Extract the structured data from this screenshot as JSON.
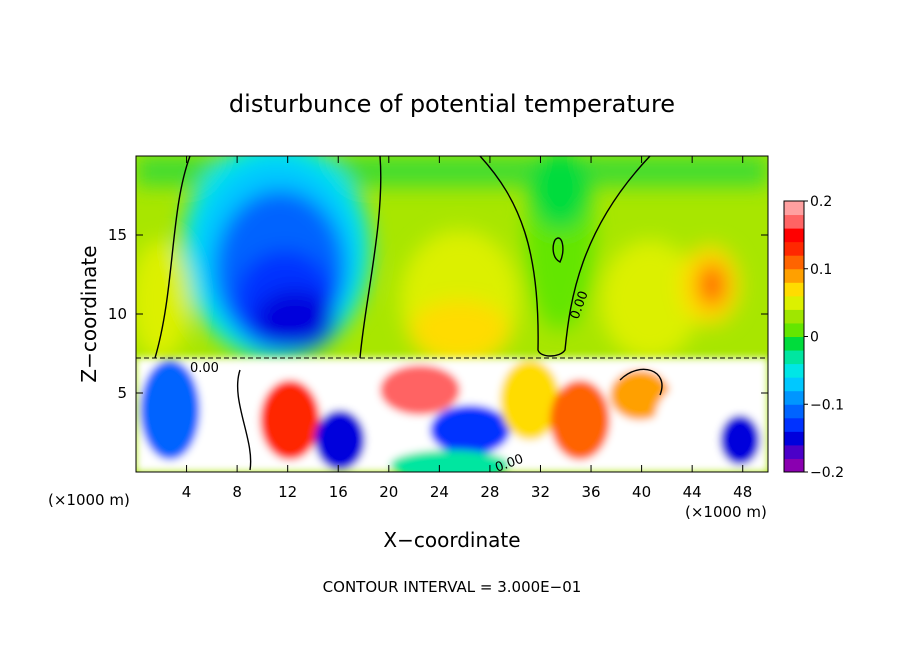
{
  "chart_data": {
    "type": "heatmap",
    "title": "disturbunce of potential temperature",
    "xlabel": "X−coordinate",
    "ylabel": "Z−coordinate",
    "x_unit_label": "(×1000 m)",
    "y_unit_label": "(×1000 m)",
    "xlim": [
      0,
      50
    ],
    "ylim": [
      0,
      20
    ],
    "x_ticks": [
      4,
      8,
      12,
      16,
      20,
      24,
      28,
      32,
      36,
      40,
      44,
      48
    ],
    "x_tick_labels": [
      "4",
      "8",
      "12",
      "16",
      "20",
      "24",
      "28",
      "32",
      "36",
      "40",
      "44",
      "48"
    ],
    "y_ticks": [
      5,
      10,
      15
    ],
    "y_tick_labels": [
      "5",
      "10",
      "15"
    ],
    "colorbar": {
      "range": [
        -0.2,
        0.2
      ],
      "ticks": [
        0.2,
        0.1,
        0,
        -0.1,
        -0.2
      ],
      "tick_labels": [
        "0.2",
        "0.1",
        "0",
        "−0.1",
        "−0.2"
      ],
      "colors": [
        "#8a00b0",
        "#4b00c8",
        "#0000dc",
        "#0032ff",
        "#0064ff",
        "#0096ff",
        "#00c8ff",
        "#00e6e6",
        "#00e6a0",
        "#00dc3c",
        "#64e600",
        "#a0e600",
        "#dcf000",
        "#ffdc00",
        "#ffa000",
        "#ff6400",
        "#ff2800",
        "#ff0000",
        "#ff6464",
        "#ffa0a0"
      ]
    },
    "contour_label": "0.00",
    "contour_interval_text": "CONTOUR INTERVAL = 3.000E−01"
  }
}
